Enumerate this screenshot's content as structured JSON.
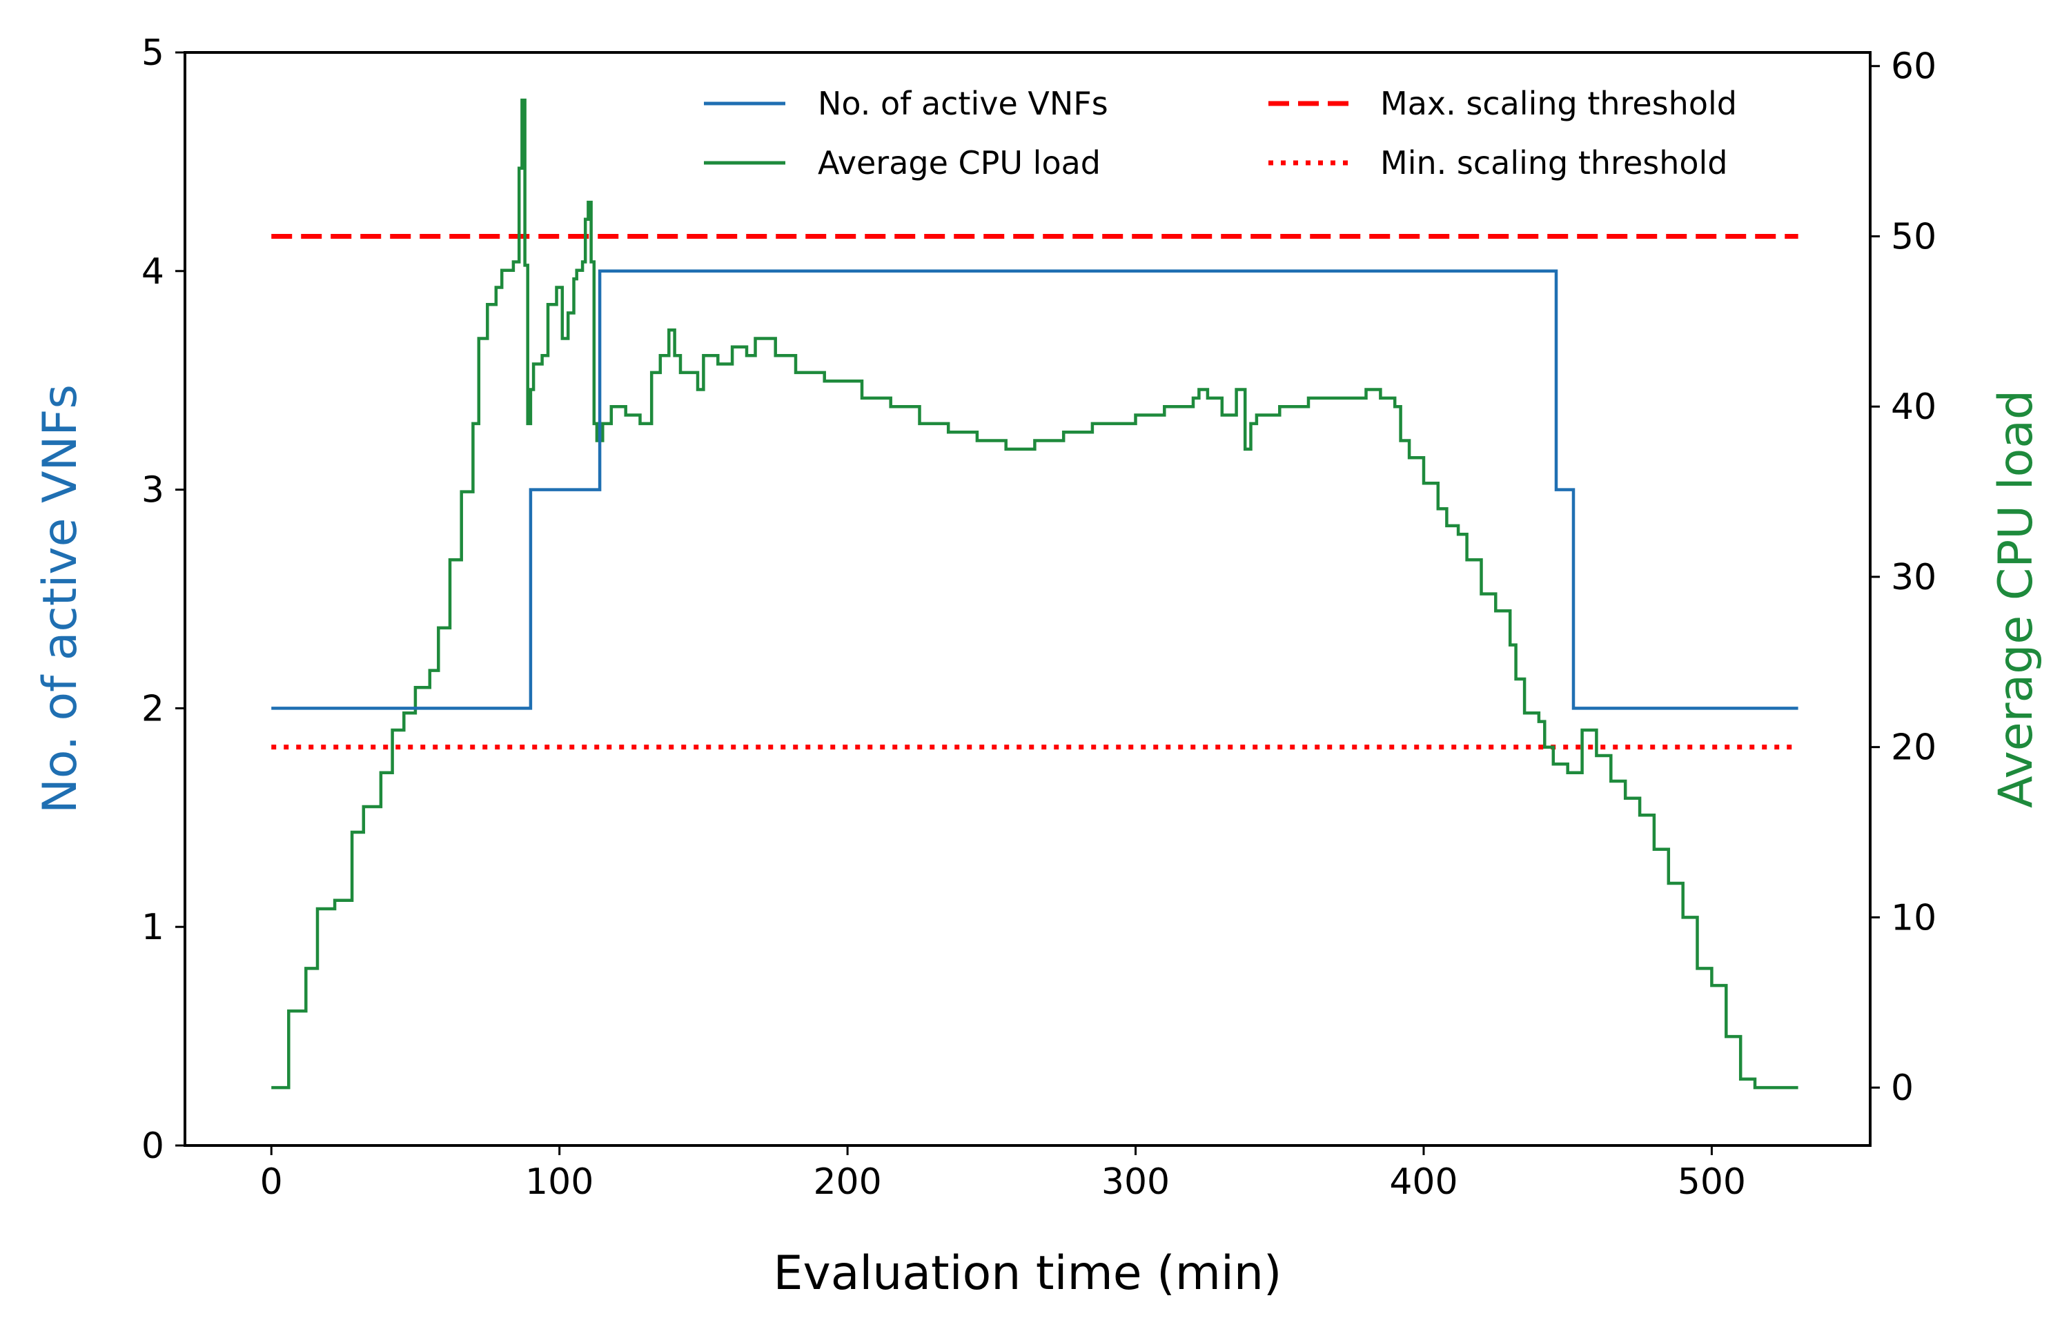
{
  "chart_data": {
    "type": "line",
    "xlabel": "Evaluation time (min)",
    "ylabel_left": "No. of active VNFs",
    "ylabel_right": "Average CPU load",
    "xlim": [
      -30,
      555
    ],
    "ylim_left": [
      0,
      5
    ],
    "ylim_right": [
      -3.4,
      60.8
    ],
    "xticks": [
      "0",
      "100",
      "200",
      "300",
      "400",
      "500"
    ],
    "yticks_left": [
      "0",
      "1",
      "2",
      "3",
      "4",
      "5"
    ],
    "yticks_right": [
      "0",
      "10",
      "20",
      "30",
      "40",
      "50",
      "60"
    ],
    "colors": {
      "vnf": "#1f6fb2",
      "cpu": "#1e8a3c",
      "threshold": "#ff0000",
      "axis": "#000000"
    },
    "legend": {
      "vnf": "No. of active VNFs",
      "cpu": "Average CPU load",
      "max": "Max. scaling threshold",
      "min": "Min. scaling threshold"
    },
    "series": [
      {
        "name": "No. of active VNFs",
        "axis": "left",
        "step": true,
        "x": [
          0,
          89,
          90,
          112,
          114,
          445,
          446,
          450,
          452,
          530
        ],
        "y": [
          2,
          2,
          3,
          3,
          4,
          4,
          3,
          3,
          2,
          2
        ]
      },
      {
        "name": "Average CPU load",
        "axis": "right",
        "step": true,
        "x": [
          0,
          6,
          12,
          16,
          22,
          28,
          32,
          38,
          42,
          46,
          50,
          55,
          58,
          62,
          66,
          70,
          72,
          75,
          78,
          80,
          84,
          86,
          87,
          88,
          89,
          90,
          91,
          94,
          96,
          99,
          101,
          103,
          105,
          106,
          108,
          109,
          110,
          111,
          112,
          113,
          115,
          118,
          123,
          128,
          132,
          135,
          138,
          140,
          142,
          148,
          150,
          155,
          160,
          165,
          168,
          175,
          182,
          192,
          205,
          215,
          225,
          235,
          245,
          255,
          265,
          275,
          285,
          300,
          310,
          320,
          322,
          325,
          330,
          335,
          338,
          340,
          342,
          350,
          360,
          370,
          380,
          385,
          390,
          392,
          395,
          400,
          405,
          408,
          412,
          415,
          420,
          425,
          430,
          432,
          435,
          440,
          442,
          445,
          450,
          455,
          460,
          465,
          470,
          475,
          480,
          485,
          490,
          495,
          500,
          505,
          510,
          515,
          520,
          530
        ],
        "y": [
          0,
          4.5,
          7,
          10.5,
          11,
          15,
          16.5,
          18.5,
          21,
          22,
          23.5,
          24.5,
          27,
          31,
          35,
          39,
          44,
          46,
          47,
          48,
          48.5,
          54,
          58,
          48.3,
          39,
          41,
          42.5,
          43,
          46,
          47,
          44,
          45.5,
          47.5,
          48,
          48.5,
          51,
          52,
          48.5,
          39,
          38,
          39,
          40,
          39.5,
          39,
          42,
          43,
          44.5,
          43,
          42,
          41,
          43,
          42.5,
          43.5,
          43,
          44,
          43,
          42,
          41.5,
          40.5,
          40,
          39,
          38.5,
          38,
          37.5,
          38,
          38.5,
          39,
          39.5,
          40,
          40.5,
          41,
          40.5,
          39.5,
          41,
          37.5,
          39,
          39.5,
          40,
          40.5,
          40.5,
          41,
          40.5,
          40,
          38,
          37,
          35.5,
          34,
          33,
          32.5,
          31,
          29,
          28,
          26,
          24,
          22,
          21.5,
          20,
          19,
          18.5,
          21,
          19.5,
          18,
          17,
          16,
          14,
          12,
          10,
          7,
          6,
          3,
          0.5,
          0,
          0,
          0
        ]
      },
      {
        "name": "Max. scaling threshold",
        "axis": "right",
        "style": "dashed",
        "x": [
          0,
          530
        ],
        "y": [
          50,
          50
        ]
      },
      {
        "name": "Min. scaling threshold",
        "axis": "right",
        "style": "dotted",
        "x": [
          0,
          530
        ],
        "y": [
          20,
          20
        ]
      }
    ]
  }
}
